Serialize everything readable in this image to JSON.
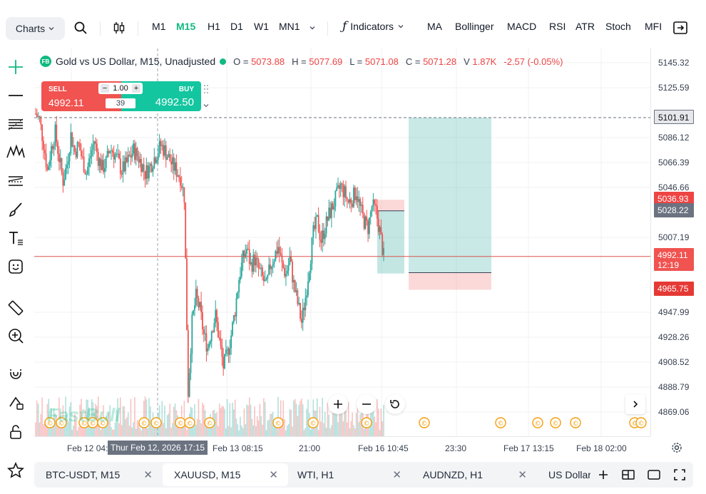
{
  "toolbar": {
    "charts_label": "Charts",
    "timeframes": [
      "M1",
      "M15",
      "H1",
      "D1",
      "W1",
      "MN1"
    ],
    "active_timeframe": "M15",
    "indicators_label": "Indicators",
    "quick_indicators": [
      "MA",
      "Bollinger",
      "MACD",
      "RSI",
      "ATR",
      "Stoch",
      "MFI"
    ]
  },
  "chart_header": {
    "badge": "FB",
    "title": "Gold vs US Dollar, M15, Unadjusted",
    "open_label": "O =",
    "open": "5073.88",
    "high_label": "H =",
    "high": "5077.69",
    "low_label": "L =",
    "low": "5071.08",
    "close_label": "C =",
    "close": "5071.28",
    "volume_label": "V",
    "volume": "1.87K",
    "change": "-2.57 (-0.05%)"
  },
  "trade_panel": {
    "sell_label": "SELL",
    "sell_price": "4992.11",
    "buy_label": "BUY",
    "buy_price": "4992.50",
    "lot": "1.00",
    "minus": "−",
    "plus": "+",
    "spread": "39"
  },
  "price_axis": {
    "labels": [
      "5145.32",
      "5125.59",
      "5086.12",
      "5066.39",
      "5046.66",
      "5007.19",
      "4947.99",
      "4928.26",
      "4908.52",
      "4888.79",
      "4869.06"
    ],
    "tag_target": "5101.91",
    "tag_sell_top": "5036.93",
    "tag_entry": "5028.22",
    "tag_current": "4992.11",
    "tag_countdown": "12:19",
    "tag_stop": "4965.75"
  },
  "time_axis": {
    "labels": [
      "Feb 12 04:",
      "Feb 13 08:15",
      "21:00",
      "Feb 16 10:45",
      "23:30",
      "Feb 17 13:15",
      "Feb 18 02:00"
    ],
    "crosshair_label": "Thur Feb 12, 2026 17:15"
  },
  "watermark": "FastBull",
  "tabs": [
    {
      "label": "BTC-USDT, M15",
      "active": false
    },
    {
      "label": "XAUUSD, M15",
      "active": true
    },
    {
      "label": "WTI, H1",
      "active": false
    },
    {
      "label": "AUDNZD, H1",
      "active": false
    },
    {
      "label": "US Dollar",
      "active": false
    }
  ],
  "colors": {
    "up": "#26a69a",
    "down": "#ef5350",
    "accent": "#10b981",
    "event": "#f59e0b"
  },
  "chart_data": {
    "type": "candlestick",
    "symbol": "XAUUSD",
    "timeframe": "M15",
    "ylim": [
      4860,
      5155
    ],
    "current_price": 4992.11,
    "position": {
      "entry": 5028.22,
      "take_profit": 5101.91,
      "stop_loss": 4965.75,
      "small_box_top": 5036.93
    },
    "close_path": [
      5105,
      5100,
      5082,
      5060,
      5078,
      5090,
      5070,
      5052,
      5065,
      5088,
      5075,
      5080,
      5068,
      5058,
      5072,
      5084,
      5070,
      5062,
      5066,
      5078,
      5074,
      5068,
      5060,
      5064,
      5070,
      5076,
      5072,
      5066,
      5058,
      5062,
      5068,
      5074,
      5080,
      5076,
      5070,
      5064,
      5060,
      5055,
      5040,
      4885,
      4940,
      4960,
      4950,
      4930,
      4920,
      4935,
      4945,
      4925,
      4905,
      4915,
      4930,
      4950,
      4975,
      4990,
      4998,
      4985,
      4990,
      4982,
      4975,
      4968,
      4985,
      4992,
      5000,
      4985,
      4978,
      4990,
      4970,
      4955,
      4940,
      4960,
      4985,
      5010,
      5020,
      5005,
      5015,
      5025,
      5032,
      5040,
      5048,
      5042,
      5035,
      5038,
      5044,
      5030,
      5020,
      5015,
      5032,
      5028,
      5012,
      4992
    ]
  }
}
